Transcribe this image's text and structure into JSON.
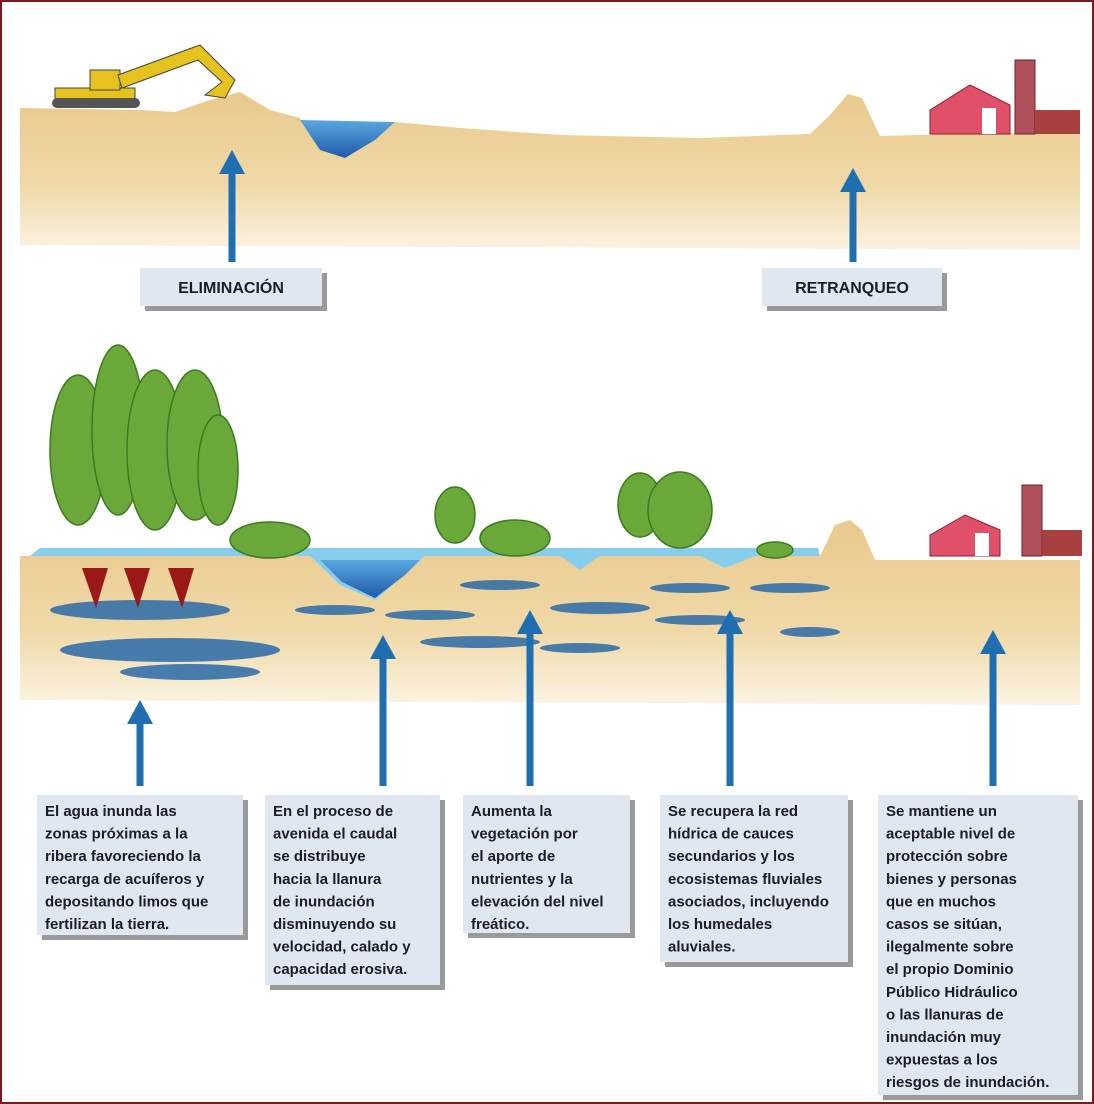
{
  "labels": [
    "ELIMINACIÓN",
    "RETRANQUEO"
  ],
  "boxes": [
    {
      "lines": [
        "El agua inunda las",
        "zonas próximas a la",
        "ribera favoreciendo la",
        "recarga de acuíferos y",
        "depositando limos que",
        "fertilizan la tierra."
      ]
    },
    {
      "lines": [
        "En el proceso de",
        "avenida el caudal",
        "se distribuye",
        "hacia la llanura",
        "de inundación",
        "disminuyendo su",
        "velocidad, calado y",
        "capacidad erosiva."
      ]
    },
    {
      "lines": [
        "Aumenta la",
        "vegetación por",
        "el aporte de",
        "nutrientes y la",
        "elevación del nivel",
        "freático."
      ]
    },
    {
      "lines": [
        "Se recupera la red",
        "hídrica de cauces",
        "secundarios y los",
        "ecosistemas fluviales",
        "asociados, incluyendo",
        "los humedales",
        "aluviales."
      ]
    },
    {
      "lines": [
        "Se mantiene un",
        "aceptable nivel de",
        "protección sobre",
        "bienes y personas",
        "que en muchos",
        "casos se sitúan,",
        "ilegalmente sobre",
        "el propio Dominio",
        "Público Hidráulico",
        "o las llanuras de",
        "inundación muy",
        "expuestas a los",
        "riesgos de inundación."
      ]
    }
  ]
}
